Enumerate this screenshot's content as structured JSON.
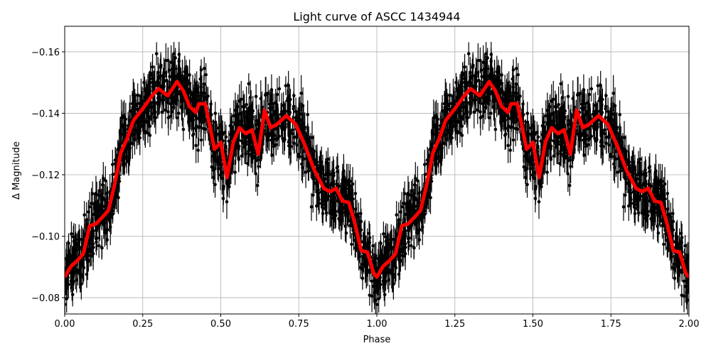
{
  "chart_data": {
    "type": "scatter",
    "title": "Light curve of ASCC 1434944",
    "xlabel": "Phase",
    "ylabel": "Δ Magnitude",
    "xlim": [
      0,
      2
    ],
    "ylim": [
      -0.0747,
      -0.1683
    ],
    "y_inverted": true,
    "grid": true,
    "x_ticks": [
      "0.00",
      "0.25",
      "0.50",
      "0.75",
      "1.00",
      "1.25",
      "1.50",
      "1.75",
      "2.00"
    ],
    "x_tick_values": [
      0,
      0.25,
      0.5,
      0.75,
      1,
      1.25,
      1.5,
      1.75,
      2
    ],
    "y_ticks": [
      "−0.08",
      "−0.10",
      "−0.12",
      "−0.14",
      "−0.16"
    ],
    "y_tick_values": [
      -0.08,
      -0.1,
      -0.12,
      -0.14,
      -0.16
    ],
    "period_repeats": 2,
    "series": [
      {
        "kind": "errorbar-points",
        "color": "#000000"
      },
      {
        "kind": "binned-model-line",
        "color": "#ff0000",
        "phase": [
          0.0,
          0.02,
          0.04,
          0.06,
          0.08,
          0.1,
          0.12,
          0.14,
          0.16,
          0.18,
          0.2,
          0.22,
          0.25,
          0.28,
          0.3,
          0.33,
          0.36,
          0.38,
          0.4,
          0.42,
          0.43,
          0.45,
          0.48,
          0.5,
          0.52,
          0.54,
          0.56,
          0.58,
          0.6,
          0.62,
          0.64,
          0.66,
          0.68,
          0.71,
          0.74,
          0.77,
          0.8,
          0.83,
          0.85,
          0.87,
          0.89,
          0.91,
          0.93,
          0.95,
          0.97,
          0.99,
          1.0
        ],
        "magnitude": [
          -0.0867,
          -0.0902,
          -0.092,
          -0.0943,
          -0.1034,
          -0.104,
          -0.1061,
          -0.1084,
          -0.1168,
          -0.1272,
          -0.1318,
          -0.1376,
          -0.1415,
          -0.1457,
          -0.148,
          -0.1457,
          -0.1503,
          -0.1473,
          -0.1422,
          -0.1403,
          -0.1431,
          -0.1431,
          -0.1283,
          -0.1306,
          -0.1191,
          -0.1306,
          -0.1353,
          -0.1334,
          -0.1346,
          -0.1267,
          -0.141,
          -0.1353,
          -0.1364,
          -0.1392,
          -0.1364,
          -0.1295,
          -0.1214,
          -0.1156,
          -0.1145,
          -0.1156,
          -0.1114,
          -0.111,
          -0.104,
          -0.0953,
          -0.0948,
          -0.0879,
          -0.0867
        ]
      }
    ]
  }
}
